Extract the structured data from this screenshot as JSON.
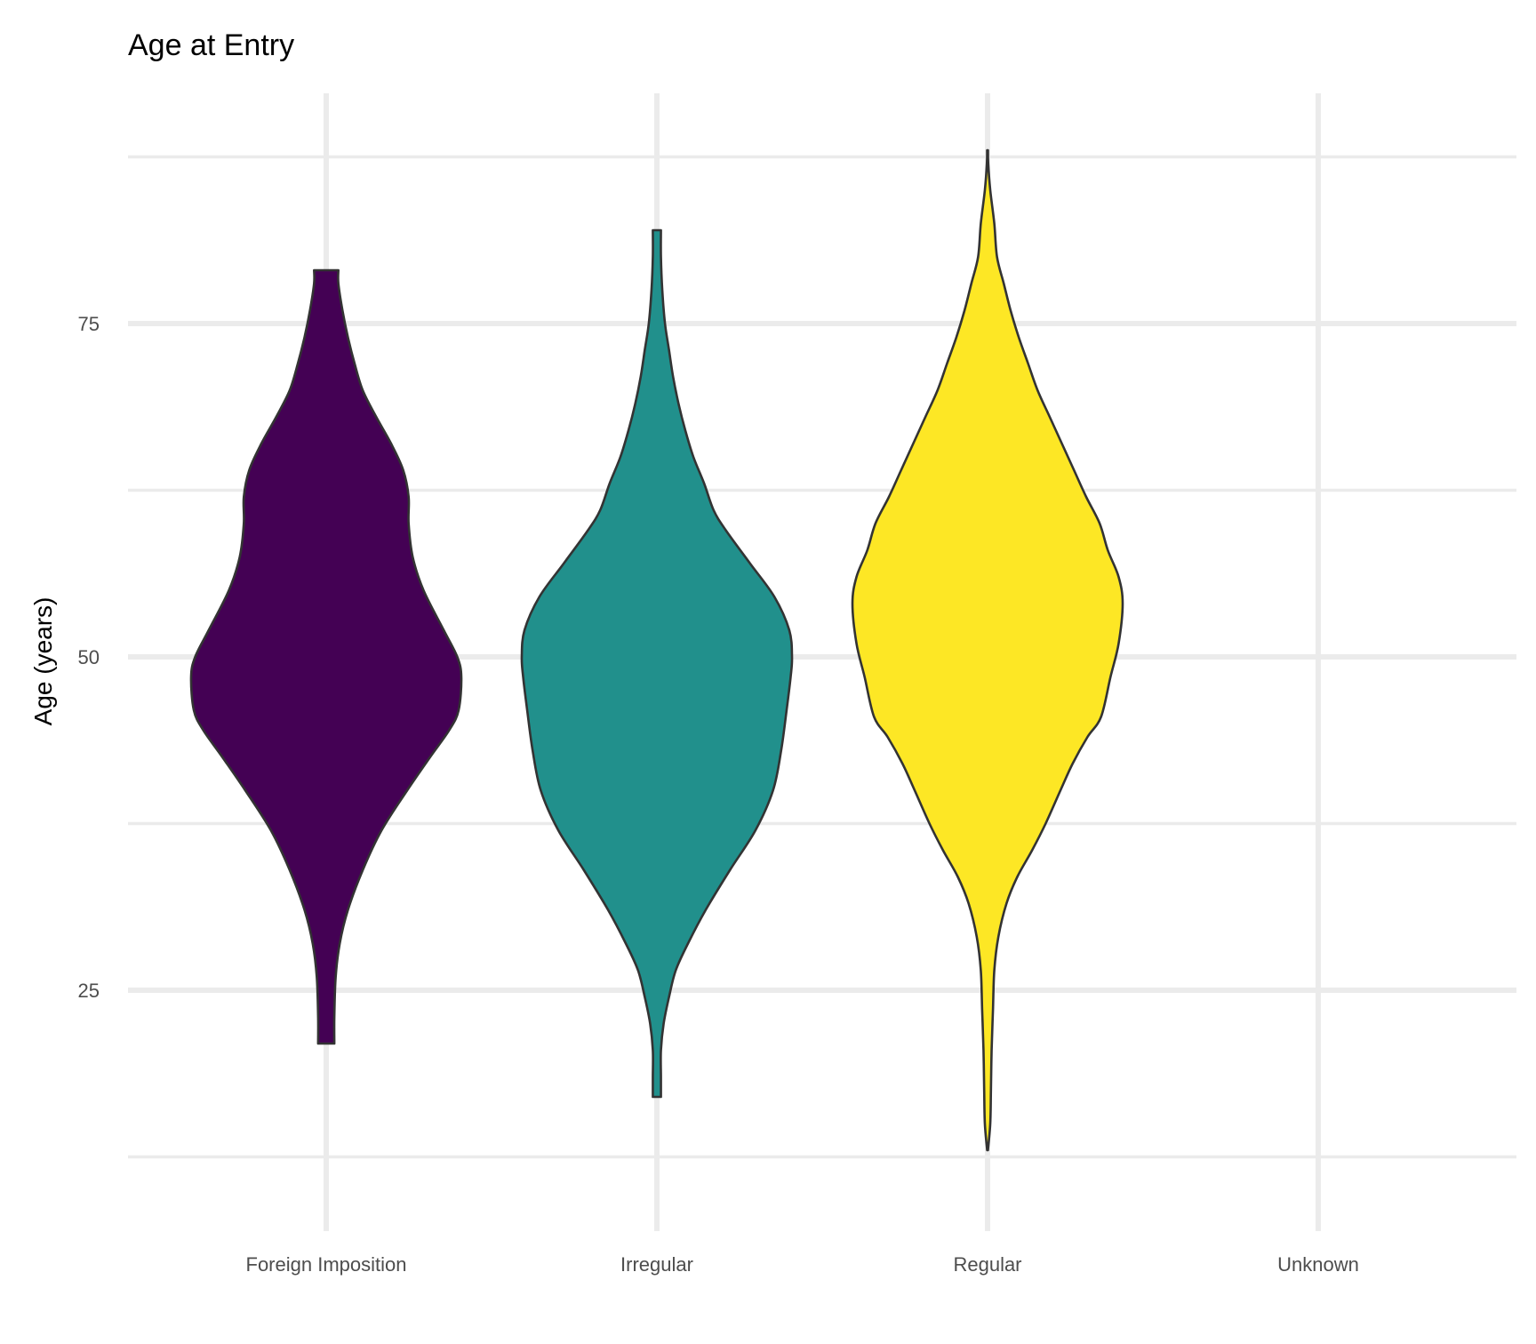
{
  "chart_data": {
    "type": "violin",
    "title": "Age at Entry",
    "xlabel": "",
    "ylabel": "Age (years)",
    "categories": [
      "Foreign Imposition",
      "Irregular",
      "Regular",
      "Unknown"
    ],
    "ylim": [
      13.0,
      91.5
    ],
    "yticks": [
      25,
      50,
      75
    ],
    "ytick_labels": [
      "25",
      "50",
      "75"
    ],
    "grid": true,
    "legend": "none",
    "series": [
      {
        "category": "Foreign Imposition",
        "color": "#440154",
        "min": 21.0,
        "max": 79.0,
        "density_profile": [
          [
            21.0,
            0.06
          ],
          [
            23.0,
            0.06
          ],
          [
            26.0,
            0.07
          ],
          [
            28.5,
            0.1
          ],
          [
            31.0,
            0.16
          ],
          [
            34.0,
            0.27
          ],
          [
            37.0,
            0.41
          ],
          [
            40.0,
            0.6
          ],
          [
            42.5,
            0.77
          ],
          [
            44.5,
            0.91
          ],
          [
            46.0,
            0.98
          ],
          [
            48.5,
            1.0
          ],
          [
            50.0,
            0.97
          ],
          [
            52.0,
            0.87
          ],
          [
            55.0,
            0.72
          ],
          [
            57.5,
            0.64
          ],
          [
            60.0,
            0.61
          ],
          [
            62.0,
            0.61
          ],
          [
            64.0,
            0.57
          ],
          [
            66.0,
            0.48
          ],
          [
            68.0,
            0.37
          ],
          [
            70.0,
            0.27
          ],
          [
            72.0,
            0.21
          ],
          [
            74.0,
            0.16
          ],
          [
            76.0,
            0.12
          ],
          [
            78.0,
            0.09
          ],
          [
            79.0,
            0.09
          ]
        ]
      },
      {
        "category": "Irregular",
        "color": "#21908C",
        "min": 17.0,
        "max": 82.0,
        "density_profile": [
          [
            17.0,
            0.03
          ],
          [
            18.5,
            0.03
          ],
          [
            20.5,
            0.03
          ],
          [
            22.5,
            0.05
          ],
          [
            24.5,
            0.09
          ],
          [
            26.5,
            0.14
          ],
          [
            28.5,
            0.23
          ],
          [
            31.0,
            0.36
          ],
          [
            34.0,
            0.54
          ],
          [
            37.0,
            0.73
          ],
          [
            40.0,
            0.86
          ],
          [
            43.0,
            0.92
          ],
          [
            46.0,
            0.96
          ],
          [
            48.5,
            0.99
          ],
          [
            50.0,
            1.0
          ],
          [
            52.0,
            0.98
          ],
          [
            54.5,
            0.87
          ],
          [
            57.0,
            0.69
          ],
          [
            59.5,
            0.51
          ],
          [
            61.0,
            0.42
          ],
          [
            63.0,
            0.35
          ],
          [
            65.0,
            0.27
          ],
          [
            67.0,
            0.21
          ],
          [
            69.0,
            0.16
          ],
          [
            71.0,
            0.12
          ],
          [
            73.0,
            0.09
          ],
          [
            75.0,
            0.06
          ],
          [
            77.5,
            0.04
          ],
          [
            80.0,
            0.03
          ],
          [
            82.0,
            0.03
          ]
        ]
      },
      {
        "category": "Regular",
        "color": "#FDE725",
        "min": 13.0,
        "max": 88.0,
        "density_profile": [
          [
            13.0,
            0.003
          ],
          [
            15.0,
            0.02
          ],
          [
            17.5,
            0.025
          ],
          [
            20.5,
            0.03
          ],
          [
            23.5,
            0.04
          ],
          [
            26.5,
            0.05
          ],
          [
            29.0,
            0.08
          ],
          [
            31.5,
            0.14
          ],
          [
            33.5,
            0.22
          ],
          [
            35.5,
            0.33
          ],
          [
            37.5,
            0.43
          ],
          [
            40.0,
            0.54
          ],
          [
            42.0,
            0.63
          ],
          [
            44.0,
            0.74
          ],
          [
            45.5,
            0.84
          ],
          [
            48.5,
            0.91
          ],
          [
            51.0,
            0.97
          ],
          [
            54.0,
            1.0
          ],
          [
            56.0,
            0.97
          ],
          [
            58.0,
            0.89
          ],
          [
            60.0,
            0.83
          ],
          [
            62.0,
            0.73
          ],
          [
            64.0,
            0.64
          ],
          [
            66.0,
            0.55
          ],
          [
            68.0,
            0.46
          ],
          [
            70.0,
            0.37
          ],
          [
            72.0,
            0.3
          ],
          [
            74.0,
            0.23
          ],
          [
            76.0,
            0.17
          ],
          [
            78.0,
            0.12
          ],
          [
            80.0,
            0.07
          ],
          [
            82.5,
            0.05
          ],
          [
            85.0,
            0.02
          ],
          [
            87.0,
            0.005
          ],
          [
            88.0,
            0.003
          ]
        ]
      }
    ]
  }
}
